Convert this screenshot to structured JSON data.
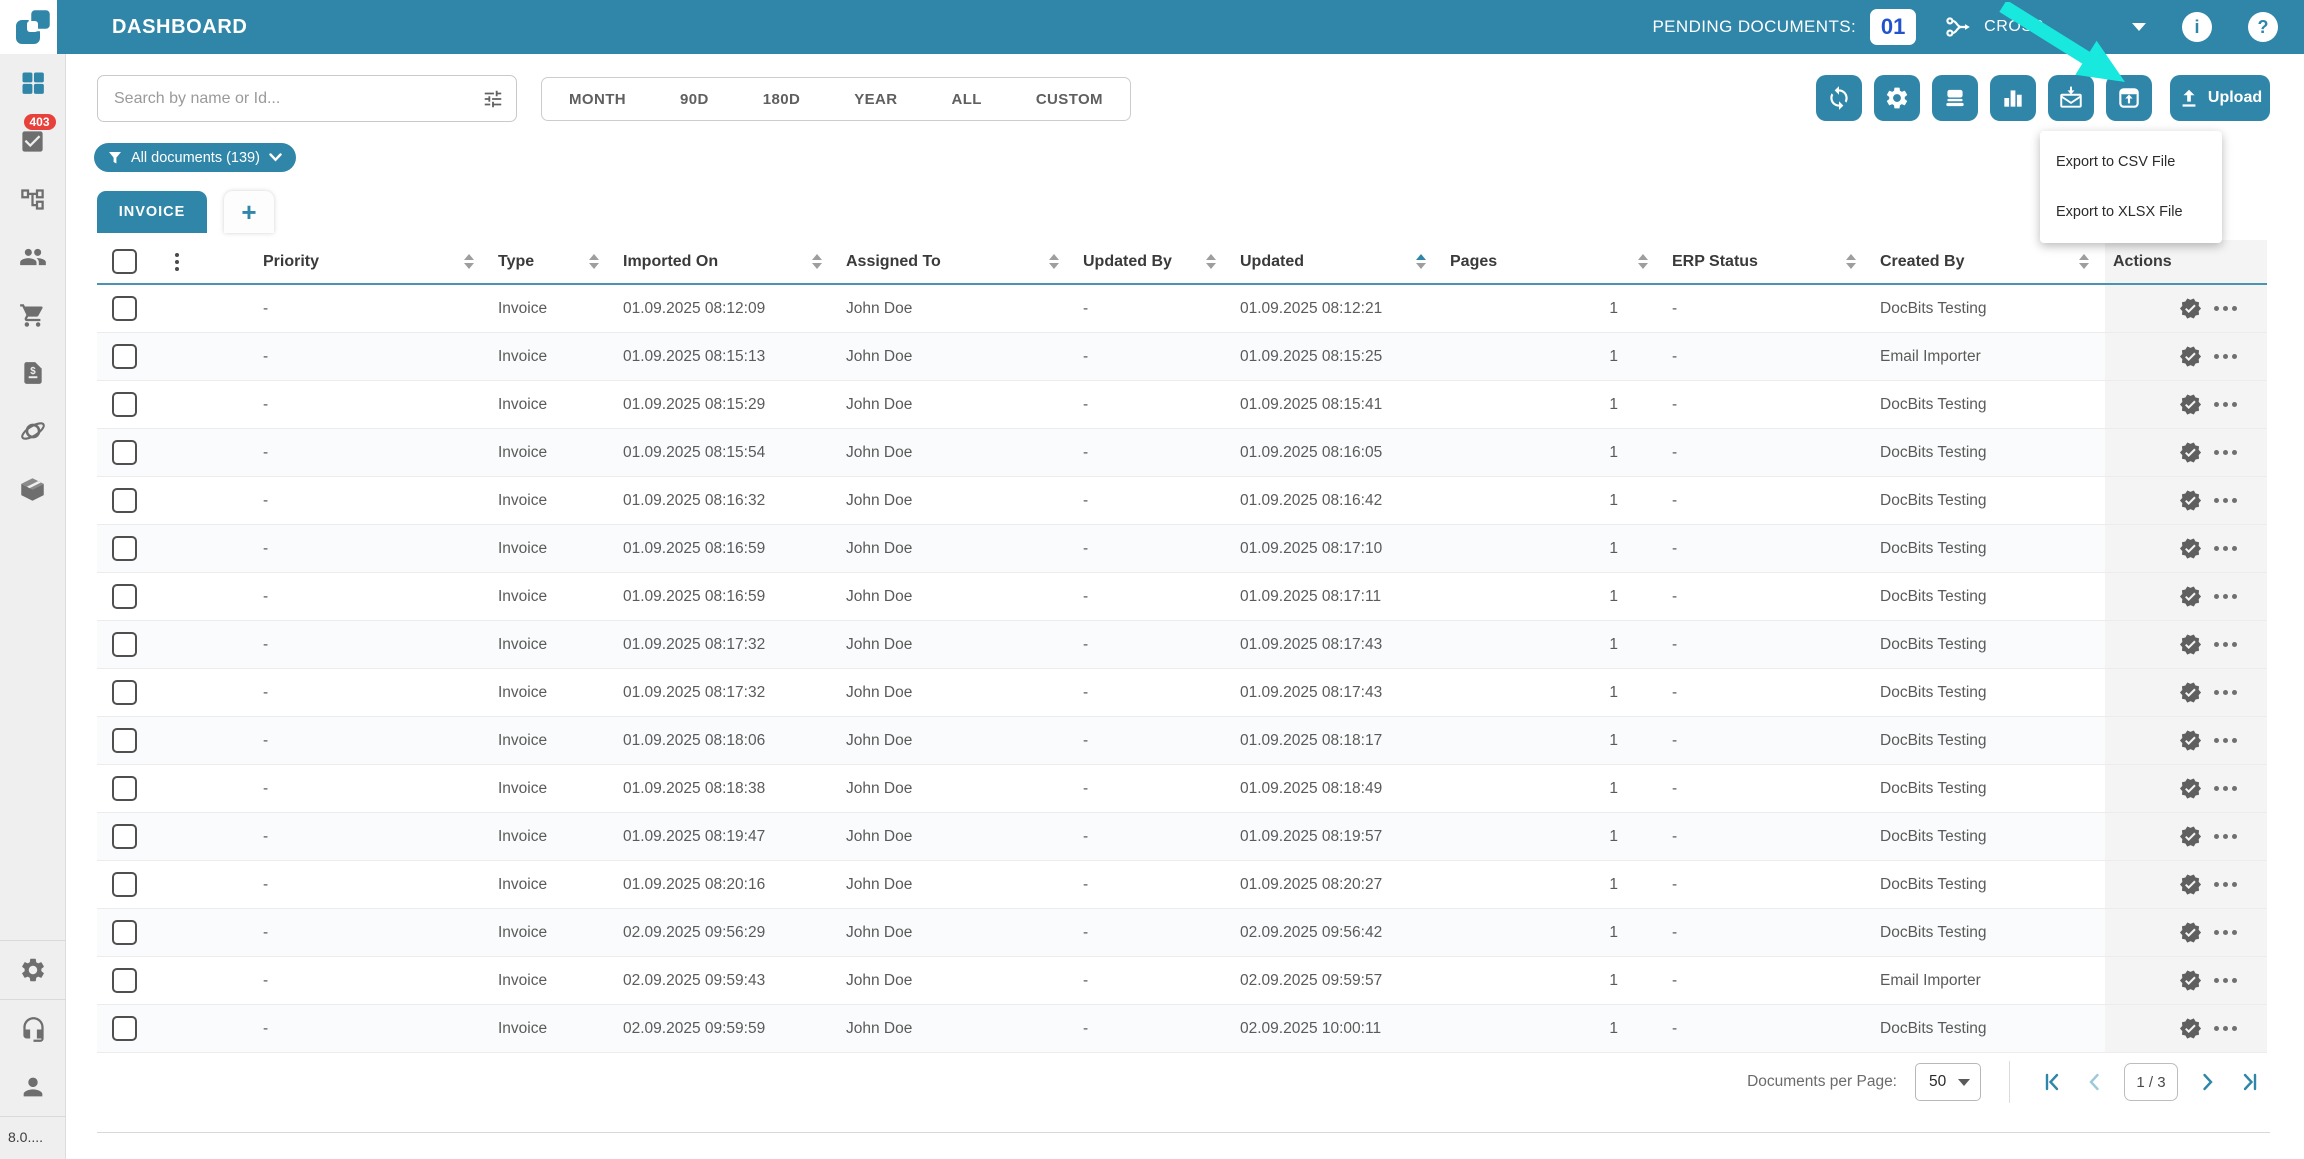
{
  "colors": {
    "accent_teal": "#2f86a8",
    "annotation_cyan": "#18e8de",
    "badge_red": "#e8413c",
    "pending_blue": "#2353cc",
    "actions_column_bg": "#f4f4f4"
  },
  "topbar": {
    "title": "DASHBOARD",
    "pending_label": "PENDING DOCUMENTS:",
    "pending_count": "01",
    "cross_label": "CROSS",
    "info_glyph": "i",
    "help_glyph": "?"
  },
  "sidebar": {
    "task_badge": "403",
    "version": "8.0....",
    "items": [
      "dashboard",
      "tasks",
      "workflow",
      "users",
      "purchasing",
      "invoices",
      "integrations",
      "packages",
      "settings",
      "support",
      "profile"
    ]
  },
  "filters": {
    "search_placeholder": "Search by name or Id...",
    "ranges": [
      "MONTH",
      "90D",
      "180D",
      "YEAR",
      "ALL",
      "CUSTOM"
    ],
    "documents_filter": "All documents (139)"
  },
  "toolbar": {
    "upload_label": "Upload",
    "icons": [
      "sync-icon",
      "gear-icon",
      "scanner-icon",
      "bar-chart-icon",
      "mail-import-icon",
      "export-icon"
    ],
    "export_menu": [
      "Export to CSV File",
      "Export to XLSX File"
    ]
  },
  "tabs": {
    "active": "INVOICE",
    "add_label": "+"
  },
  "table": {
    "columns": [
      "Priority",
      "Type",
      "Imported On",
      "Assigned To",
      "Updated By",
      "Updated",
      "Pages",
      "ERP Status",
      "Created By",
      "Actions"
    ],
    "sort": {
      "column": "Updated",
      "direction": "ascending"
    },
    "rows": [
      {
        "priority": "-",
        "type": "Invoice",
        "imported_on": "01.09.2025 08:12:09",
        "assigned_to": "John Doe",
        "updated_by": "-",
        "updated": "01.09.2025 08:12:21",
        "pages": "1",
        "erp_status": "-",
        "created_by": "DocBits Testing"
      },
      {
        "priority": "-",
        "type": "Invoice",
        "imported_on": "01.09.2025 08:15:13",
        "assigned_to": "John Doe",
        "updated_by": "-",
        "updated": "01.09.2025 08:15:25",
        "pages": "1",
        "erp_status": "-",
        "created_by": "Email Importer"
      },
      {
        "priority": "-",
        "type": "Invoice",
        "imported_on": "01.09.2025 08:15:29",
        "assigned_to": "John Doe",
        "updated_by": "-",
        "updated": "01.09.2025 08:15:41",
        "pages": "1",
        "erp_status": "-",
        "created_by": "DocBits Testing"
      },
      {
        "priority": "-",
        "type": "Invoice",
        "imported_on": "01.09.2025 08:15:54",
        "assigned_to": "John Doe",
        "updated_by": "-",
        "updated": "01.09.2025 08:16:05",
        "pages": "1",
        "erp_status": "-",
        "created_by": "DocBits Testing"
      },
      {
        "priority": "-",
        "type": "Invoice",
        "imported_on": "01.09.2025 08:16:32",
        "assigned_to": "John Doe",
        "updated_by": "-",
        "updated": "01.09.2025 08:16:42",
        "pages": "1",
        "erp_status": "-",
        "created_by": "DocBits Testing"
      },
      {
        "priority": "-",
        "type": "Invoice",
        "imported_on": "01.09.2025 08:16:59",
        "assigned_to": "John Doe",
        "updated_by": "-",
        "updated": "01.09.2025 08:17:10",
        "pages": "1",
        "erp_status": "-",
        "created_by": "DocBits Testing"
      },
      {
        "priority": "-",
        "type": "Invoice",
        "imported_on": "01.09.2025 08:16:59",
        "assigned_to": "John Doe",
        "updated_by": "-",
        "updated": "01.09.2025 08:17:11",
        "pages": "1",
        "erp_status": "-",
        "created_by": "DocBits Testing"
      },
      {
        "priority": "-",
        "type": "Invoice",
        "imported_on": "01.09.2025 08:17:32",
        "assigned_to": "John Doe",
        "updated_by": "-",
        "updated": "01.09.2025 08:17:43",
        "pages": "1",
        "erp_status": "-",
        "created_by": "DocBits Testing"
      },
      {
        "priority": "-",
        "type": "Invoice",
        "imported_on": "01.09.2025 08:17:32",
        "assigned_to": "John Doe",
        "updated_by": "-",
        "updated": "01.09.2025 08:17:43",
        "pages": "1",
        "erp_status": "-",
        "created_by": "DocBits Testing"
      },
      {
        "priority": "-",
        "type": "Invoice",
        "imported_on": "01.09.2025 08:18:06",
        "assigned_to": "John Doe",
        "updated_by": "-",
        "updated": "01.09.2025 08:18:17",
        "pages": "1",
        "erp_status": "-",
        "created_by": "DocBits Testing"
      },
      {
        "priority": "-",
        "type": "Invoice",
        "imported_on": "01.09.2025 08:18:38",
        "assigned_to": "John Doe",
        "updated_by": "-",
        "updated": "01.09.2025 08:18:49",
        "pages": "1",
        "erp_status": "-",
        "created_by": "DocBits Testing"
      },
      {
        "priority": "-",
        "type": "Invoice",
        "imported_on": "01.09.2025 08:19:47",
        "assigned_to": "John Doe",
        "updated_by": "-",
        "updated": "01.09.2025 08:19:57",
        "pages": "1",
        "erp_status": "-",
        "created_by": "DocBits Testing"
      },
      {
        "priority": "-",
        "type": "Invoice",
        "imported_on": "01.09.2025 08:20:16",
        "assigned_to": "John Doe",
        "updated_by": "-",
        "updated": "01.09.2025 08:20:27",
        "pages": "1",
        "erp_status": "-",
        "created_by": "DocBits Testing"
      },
      {
        "priority": "-",
        "type": "Invoice",
        "imported_on": "02.09.2025 09:56:29",
        "assigned_to": "John Doe",
        "updated_by": "-",
        "updated": "02.09.2025 09:56:42",
        "pages": "1",
        "erp_status": "-",
        "created_by": "DocBits Testing"
      },
      {
        "priority": "-",
        "type": "Invoice",
        "imported_on": "02.09.2025 09:59:43",
        "assigned_to": "John Doe",
        "updated_by": "-",
        "updated": "02.09.2025 09:59:57",
        "pages": "1",
        "erp_status": "-",
        "created_by": "Email Importer"
      },
      {
        "priority": "-",
        "type": "Invoice",
        "imported_on": "02.09.2025 09:59:59",
        "assigned_to": "John Doe",
        "updated_by": "-",
        "updated": "02.09.2025 10:00:11",
        "pages": "1",
        "erp_status": "-",
        "created_by": "DocBits Testing"
      }
    ]
  },
  "pagination": {
    "per_page_label": "Documents per Page:",
    "per_page_value": "50",
    "page_indicator": "1 / 3"
  }
}
